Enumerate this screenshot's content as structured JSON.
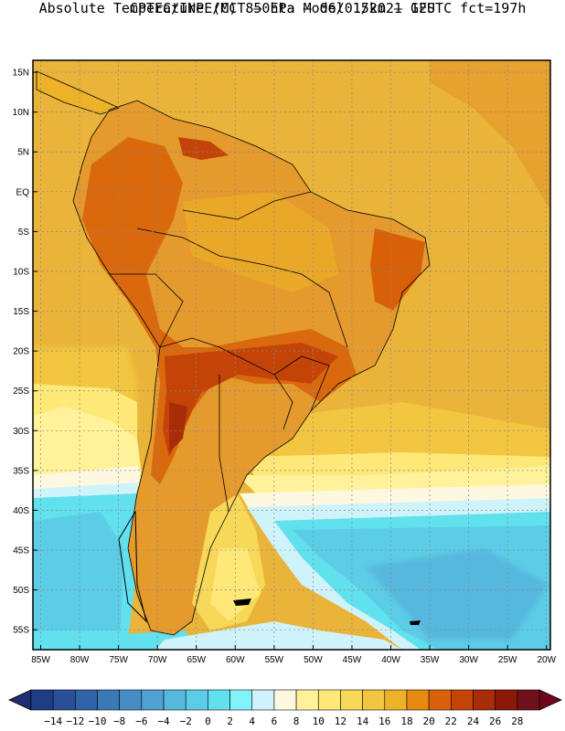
{
  "header": {
    "line1": "CPTEC/INPE/MCT –  Eta Model 15km – GFS",
    "line2": "Absolute Temperature (C) 850hPa – 06/01/2021 12UTC fct=197h"
  },
  "map": {
    "lon_range": [
      -86,
      -19.5
    ],
    "lat_range": [
      -57.5,
      16.5
    ],
    "lat_ticks": [
      "15N",
      "10N",
      "5N",
      "EQ",
      "5S",
      "10S",
      "15S",
      "20S",
      "25S",
      "30S",
      "35S",
      "40S",
      "45S",
      "50S",
      "55S"
    ],
    "lat_tick_values": [
      15,
      10,
      5,
      0,
      -5,
      -10,
      -15,
      -20,
      -25,
      -30,
      -35,
      -40,
      -45,
      -50,
      -55
    ],
    "lon_ticks": [
      "85W",
      "80W",
      "75W",
      "70W",
      "65W",
      "60W",
      "55W",
      "50W",
      "45W",
      "40W",
      "35W",
      "30W",
      "25W",
      "20W"
    ],
    "lon_tick_values": [
      -85,
      -80,
      -75,
      -70,
      -65,
      -60,
      -55,
      -50,
      -45,
      -40,
      -35,
      -30,
      -25,
      -20
    ],
    "ocean_warm_color": "#eab43a",
    "land_base_color": "#e49a2c"
  },
  "colorbar": {
    "labels": [
      "-14",
      "-12",
      "-10",
      "-8",
      "-6",
      "-4",
      "-2",
      "0",
      "2",
      "4",
      "6",
      "8",
      "10",
      "12",
      "14",
      "16",
      "18",
      "20",
      "22",
      "24",
      "26",
      "28"
    ],
    "colors": [
      "#1f3d85",
      "#284f98",
      "#3163a8",
      "#3b78b8",
      "#468cc5",
      "#4fa2d2",
      "#57b8de",
      "#5ccde6",
      "#61e0ee",
      "#7ff4fa",
      "#cff3fb",
      "#fff8e0",
      "#fff29a",
      "#fde878",
      "#f8d858",
      "#f2c640",
      "#eeb228",
      "#e88a10",
      "#d86008",
      "#c44408",
      "#a82c08",
      "#8c1808",
      "#70101a"
    ],
    "under_color": "#1f2e70",
    "over_color": "#70061e"
  }
}
